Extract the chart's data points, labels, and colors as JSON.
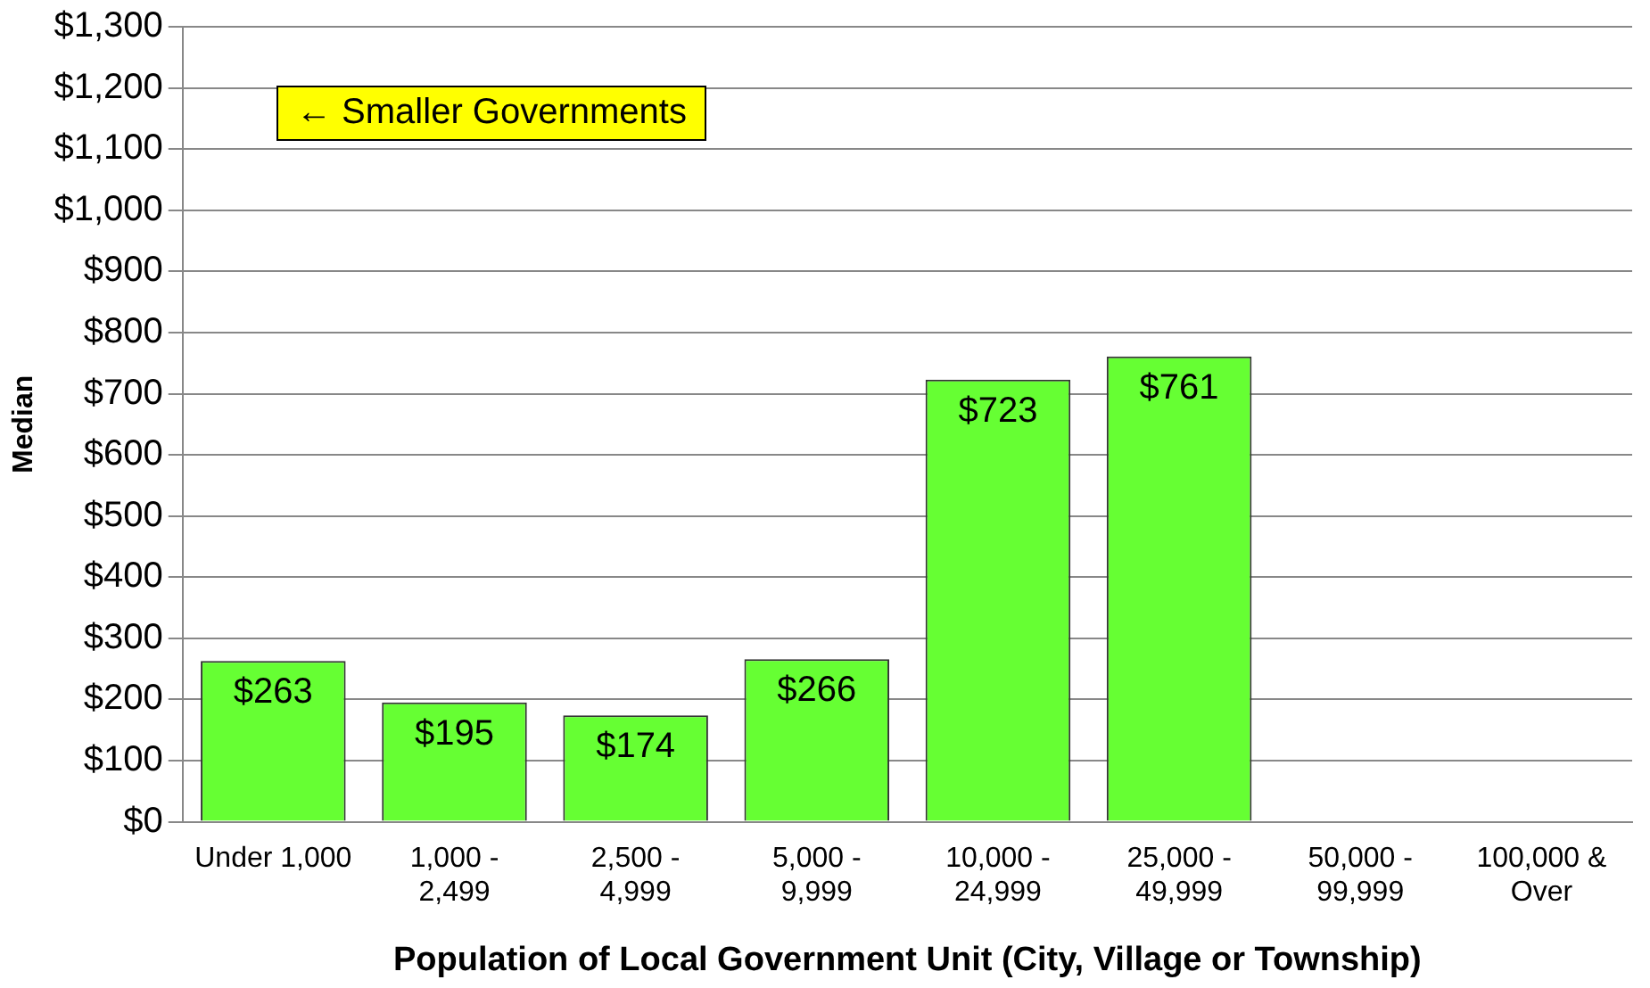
{
  "chart_data": {
    "type": "bar",
    "xlabel": "Population of Local Government Unit (City, Village or Township)",
    "ylabel": "Median",
    "categories": [
      "Under 1,000",
      "1,000 -\n2,499",
      "2,500 -\n4,999",
      "5,000 -\n9,999",
      "10,000 -\n24,999",
      "25,000 -\n49,999",
      "50,000 -\n99,999",
      "100,000 &\nOver"
    ],
    "values": [
      263,
      195,
      174,
      266,
      723,
      761,
      null,
      null
    ],
    "value_labels": [
      "$263",
      "$195",
      "$174",
      "$266",
      "$723",
      "$761",
      null,
      null
    ],
    "color": "#66ff33",
    "ylim": [
      0,
      1300
    ],
    "yticks": [
      {
        "value": 0,
        "label": "$0"
      },
      {
        "value": 100,
        "label": "$100"
      },
      {
        "value": 200,
        "label": "$200"
      },
      {
        "value": 300,
        "label": "$300"
      },
      {
        "value": 400,
        "label": "$400"
      },
      {
        "value": 500,
        "label": "$500"
      },
      {
        "value": 600,
        "label": "$600"
      },
      {
        "value": 700,
        "label": "$700"
      },
      {
        "value": 800,
        "label": "$800"
      },
      {
        "value": 900,
        "label": "$900"
      },
      {
        "value": 1000,
        "label": "$1,000"
      },
      {
        "value": 1100,
        "label": "$1,100"
      },
      {
        "value": 1200,
        "label": "$1,200"
      },
      {
        "value": 1300,
        "label": "$1,300"
      }
    ],
    "grid": "y",
    "legend": false,
    "annotations": [
      "← Smaller Governments"
    ]
  }
}
